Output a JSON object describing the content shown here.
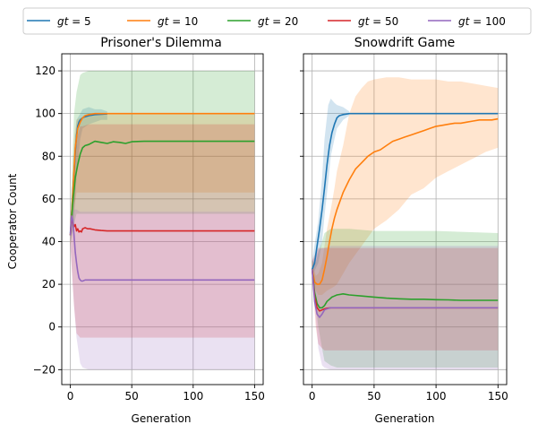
{
  "chart_data": {
    "type": "line",
    "legend": {
      "placement": "top-center",
      "entries": [
        {
          "label": "gt = 5",
          "color": "#1f77b4"
        },
        {
          "label": "gt = 10",
          "color": "#ff7f0e"
        },
        {
          "label": "gt = 20",
          "color": "#2ca02c"
        },
        {
          "label": "gt = 50",
          "color": "#d62728"
        },
        {
          "label": "gt = 100",
          "color": "#9467bd"
        }
      ]
    },
    "ylabel": "Cooperator Count",
    "ylim": [
      -27,
      128
    ],
    "yticks": [
      -20,
      0,
      20,
      40,
      60,
      80,
      100,
      120
    ],
    "xlim": [
      -7,
      157
    ],
    "xticks": [
      0,
      50,
      100,
      150
    ],
    "grid": true,
    "panels": [
      {
        "title": "Prisoner's Dilemma",
        "xlabel": "Generation",
        "series": [
          {
            "name": "gt = 5",
            "color": "#1f77b4",
            "x": [
              0,
              1,
              2,
              3,
              4,
              5,
              6,
              7,
              8,
              10,
              12,
              15,
              20,
              25,
              30
            ],
            "y": [
              44,
              53,
              63,
              72,
              82,
              90,
              94,
              96,
              97,
              98,
              98.5,
              99,
              99.5,
              99.7,
              99.8
            ],
            "band_x": [
              0,
              3,
              5,
              8,
              10,
              15,
              20,
              25,
              30
            ],
            "band_low": [
              40,
              50,
              70,
              88,
              93,
              95,
              96,
              97,
              97
            ],
            "band_high": [
              48,
              80,
              97,
              100,
              102,
              103,
              102,
              102,
              101
            ]
          },
          {
            "name": "gt = 10",
            "color": "#ff7f0e",
            "x": [
              0,
              2,
              4,
              6,
              8,
              10,
              12,
              15,
              20,
              30,
              50,
              100,
              150
            ],
            "y": [
              43,
              62,
              84,
              93,
              96,
              98,
              99,
              99.5,
              100,
              100,
              100,
              100,
              100
            ],
            "band_x": [
              0,
              3,
              5,
              8,
              10,
              15,
              30,
              150
            ],
            "band_low": [
              38,
              55,
              63,
              63,
              63,
              63,
              63,
              63
            ],
            "band_high": [
              48,
              88,
              97,
              98,
              98,
              99,
              100,
              100
            ]
          },
          {
            "name": "gt = 20",
            "color": "#2ca02c",
            "x": [
              0,
              2,
              4,
              6,
              8,
              10,
              12,
              15,
              20,
              25,
              30,
              35,
              40,
              45,
              50,
              60,
              80,
              100,
              150
            ],
            "y": [
              43,
              58,
              70,
              76,
              81,
              84,
              85,
              85.5,
              87,
              86.5,
              86,
              86.8,
              86.5,
              86,
              86.8,
              87,
              87,
              87,
              87
            ],
            "band_x": [
              0,
              3,
              5,
              8,
              10,
              15,
              150
            ],
            "band_low": [
              38,
              48,
              53,
              53,
              53,
              53,
              53
            ],
            "band_high": [
              48,
              100,
              110,
              118,
              119,
              120,
              120
            ]
          },
          {
            "name": "gt = 50",
            "color": "#d62728",
            "x": [
              0,
              1,
              2,
              3,
              4,
              5,
              6,
              7,
              8,
              9,
              10,
              12,
              14,
              16,
              20,
              25,
              30,
              40,
              50,
              100,
              150
            ],
            "y": [
              43,
              51,
              49,
              47,
              48,
              45,
              46,
              44.5,
              45,
              44.5,
              46,
              46.5,
              46,
              46,
              45.5,
              45.2,
              45,
              45,
              45,
              45,
              45
            ],
            "band_x": [
              0,
              3,
              5,
              8,
              10,
              15,
              150
            ],
            "band_low": [
              38,
              10,
              -3,
              -5,
              -5,
              -5,
              -5
            ],
            "band_high": [
              48,
              75,
              88,
              94,
              94,
              95,
              95
            ]
          },
          {
            "name": "gt = 100",
            "color": "#9467bd",
            "x": [
              0,
              1,
              2,
              3,
              4,
              5,
              6,
              7,
              8,
              9,
              10,
              12,
              15,
              20,
              30,
              50,
              100,
              150
            ],
            "y": [
              43,
              52,
              50,
              43,
              35,
              30,
              26,
              23,
              22,
              21.5,
              21.5,
              22,
              22,
              22,
              22,
              22,
              22,
              22
            ],
            "band_x": [
              0,
              3,
              5,
              8,
              10,
              15,
              150
            ],
            "band_low": [
              38,
              10,
              -5,
              -17,
              -19,
              -20,
              -20
            ],
            "band_high": [
              48,
              55,
              55,
              54,
              54,
              54,
              54
            ]
          }
        ]
      },
      {
        "title": "Snowdrift Game",
        "xlabel": "Generation",
        "series": [
          {
            "name": "gt = 5",
            "color": "#1f77b4",
            "x": [
              0,
              2,
              4,
              6,
              8,
              10,
              12,
              14,
              16,
              18,
              20,
              22,
              25,
              30,
              50,
              100,
              150
            ],
            "y": [
              27,
              30,
              38,
              46,
              55,
              65,
              76,
              85,
              91,
              95,
              98,
              99,
              99.5,
              100,
              100,
              100,
              100
            ],
            "band_x": [
              0,
              5,
              8,
              10,
              13,
              15,
              18,
              20,
              25,
              30
            ],
            "band_low": [
              24,
              30,
              40,
              52,
              68,
              80,
              88,
              93,
              97,
              99
            ],
            "band_high": [
              31,
              50,
              70,
              88,
              104,
              107,
              105,
              104,
              103,
              101
            ]
          },
          {
            "name": "gt = 10",
            "color": "#ff7f0e",
            "x": [
              0,
              2,
              4,
              6,
              8,
              10,
              12,
              14,
              16,
              18,
              20,
              25,
              30,
              35,
              40,
              45,
              50,
              55,
              60,
              65,
              70,
              75,
              80,
              85,
              90,
              95,
              100,
              105,
              110,
              115,
              120,
              125,
              130,
              135,
              140,
              145,
              150
            ],
            "y": [
              27,
              21,
              20,
              20,
              22,
              27,
              33,
              40,
              46,
              51,
              55,
              63,
              69,
              74,
              77,
              80,
              82,
              83,
              85,
              87,
              88,
              89,
              90,
              91,
              92,
              93,
              94,
              94.5,
              95,
              95.5,
              95.5,
              96,
              96.5,
              97,
              97,
              97,
              97.5
            ],
            "band_x": [
              0,
              3,
              5,
              8,
              10,
              12,
              15,
              18,
              20,
              25,
              30,
              35,
              40,
              45,
              50,
              60,
              70,
              80,
              90,
              100,
              110,
              120,
              130,
              140,
              150
            ],
            "band_low": [
              24,
              17,
              15,
              15,
              16,
              17,
              18,
              19,
              20,
              25,
              30,
              34,
              38,
              42,
              46,
              50,
              55,
              62,
              65,
              70,
              73,
              76,
              79,
              82,
              84
            ],
            "band_high": [
              31,
              24,
              25,
              30,
              38,
              46,
              55,
              65,
              73,
              85,
              100,
              108,
              112,
              115,
              116,
              117,
              117,
              116,
              116,
              116,
              115,
              115,
              114,
              113,
              112
            ]
          },
          {
            "name": "gt = 20",
            "color": "#2ca02c",
            "x": [
              0,
              2,
              4,
              6,
              8,
              10,
              12,
              14,
              16,
              18,
              20,
              25,
              30,
              40,
              50,
              60,
              70,
              80,
              90,
              100,
              110,
              120,
              130,
              140,
              150
            ],
            "y": [
              27,
              16,
              11,
              9,
              9,
              10,
              12,
              13,
              14,
              14.5,
              15,
              15.5,
              15,
              14.5,
              14,
              13.5,
              13.2,
              13,
              13,
              12.8,
              12.7,
              12.5,
              12.5,
              12.5,
              12.5
            ],
            "band_x": [
              0,
              3,
              5,
              8,
              10,
              15,
              20,
              30,
              50,
              80,
              100,
              150
            ],
            "band_low": [
              24,
              10,
              0,
              -10,
              -16,
              -18,
              -19,
              -19,
              -19,
              -19,
              -19,
              -19
            ],
            "band_high": [
              31,
              30,
              35,
              40,
              44,
              46,
              46,
              46,
              45,
              45,
              45,
              44
            ]
          },
          {
            "name": "gt = 50",
            "color": "#d62728",
            "x": [
              0,
              2,
              4,
              6,
              8,
              10,
              12,
              15,
              20,
              30,
              50,
              100,
              150
            ],
            "y": [
              27,
              14,
              9,
              7.5,
              8,
              8.5,
              8.8,
              9,
              9,
              9,
              9,
              9,
              9
            ],
            "band_x": [
              0,
              3,
              5,
              8,
              10,
              15,
              150
            ],
            "band_low": [
              24,
              0,
              -8,
              -10,
              -11,
              -11,
              -11
            ],
            "band_high": [
              31,
              35,
              37,
              37,
              37,
              37,
              37
            ]
          },
          {
            "name": "gt = 100",
            "color": "#9467bd",
            "x": [
              0,
              2,
              4,
              6,
              8,
              10,
              12,
              15,
              20,
              30,
              50,
              100,
              150
            ],
            "y": [
              27,
              12,
              6,
              4.5,
              6,
              8,
              8.5,
              9,
              9,
              9,
              9,
              9,
              9
            ],
            "band_x": [
              0,
              3,
              5,
              8,
              10,
              15,
              150
            ],
            "band_low": [
              24,
              5,
              -10,
              -18,
              -19,
              -20,
              -20
            ],
            "band_high": [
              31,
              33,
              36,
              37,
              37,
              38,
              38
            ]
          }
        ]
      }
    ]
  }
}
